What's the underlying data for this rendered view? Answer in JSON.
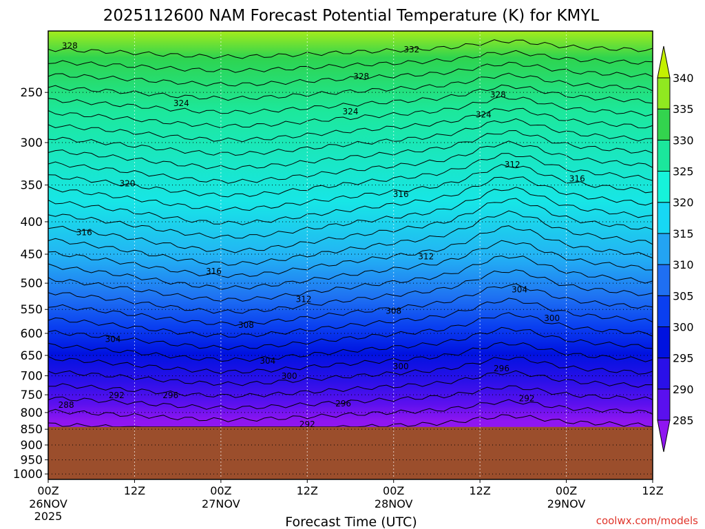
{
  "chart_data": {
    "type": "heatmap",
    "title": "2025112600 NAM Forecast Potential Temperature (K) for KMYL",
    "xlabel": "Forecast Time (UTC)",
    "ylabel": "",
    "credit": "coolwx.com/models",
    "x_ticks": [
      {
        "hour": 0,
        "label": "00Z",
        "sub": "26NOV",
        "sub2": "2025"
      },
      {
        "hour": 12,
        "label": "12Z",
        "sub": "",
        "sub2": ""
      },
      {
        "hour": 24,
        "label": "00Z",
        "sub": "27NOV",
        "sub2": ""
      },
      {
        "hour": 36,
        "label": "12Z",
        "sub": "",
        "sub2": ""
      },
      {
        "hour": 48,
        "label": "00Z",
        "sub": "28NOV",
        "sub2": ""
      },
      {
        "hour": 60,
        "label": "12Z",
        "sub": "",
        "sub2": ""
      },
      {
        "hour": 72,
        "label": "00Z",
        "sub": "29NOV",
        "sub2": ""
      },
      {
        "hour": 84,
        "label": "12Z",
        "sub": "",
        "sub2": ""
      }
    ],
    "x_range_hours": [
      0,
      84
    ],
    "y_axis": {
      "type": "log-pressure",
      "range_hpa": [
        1020,
        200
      ],
      "ticks": [
        250,
        300,
        350,
        400,
        450,
        500,
        550,
        600,
        650,
        700,
        750,
        800,
        850,
        900,
        950,
        1000
      ]
    },
    "colorbar": {
      "levels": [
        285,
        290,
        295,
        300,
        305,
        310,
        315,
        320,
        325,
        330,
        335,
        340
      ],
      "colors": [
        "#8f16f0",
        "#5a10ee",
        "#2a10e8",
        "#0012e0",
        "#0a3ff0",
        "#1f6ff2",
        "#23a4f3",
        "#17d8f4",
        "#16f3da",
        "#1be79c",
        "#33d44e",
        "#90e820",
        "#c4f000"
      ],
      "extend": "both"
    },
    "ground_color": "#9b4e2c",
    "ground_top_hpa": 843,
    "contour_interval_k": 2,
    "grid": true,
    "contour_labels": [
      {
        "label": "328",
        "hour": 3,
        "hpa": 211
      },
      {
        "label": "332",
        "hour": 50.5,
        "hpa": 214
      },
      {
        "label": "328",
        "hour": 43.5,
        "hpa": 236
      },
      {
        "label": "328",
        "hour": 62.5,
        "hpa": 252
      },
      {
        "label": "324",
        "hour": 18.5,
        "hpa": 260
      },
      {
        "label": "324",
        "hour": 42,
        "hpa": 268
      },
      {
        "label": "324",
        "hour": 60.5,
        "hpa": 271
      },
      {
        "label": "312",
        "hour": 64.5,
        "hpa": 325
      },
      {
        "label": "316",
        "hour": 73.5,
        "hpa": 342
      },
      {
        "label": "320",
        "hour": 11,
        "hpa": 348
      },
      {
        "label": "316",
        "hour": 49,
        "hpa": 362
      },
      {
        "label": "316",
        "hour": 5,
        "hpa": 416
      },
      {
        "label": "312",
        "hour": 52.5,
        "hpa": 454
      },
      {
        "label": "316",
        "hour": 23,
        "hpa": 479
      },
      {
        "label": "304",
        "hour": 65.5,
        "hpa": 512
      },
      {
        "label": "312",
        "hour": 35.5,
        "hpa": 530
      },
      {
        "label": "308",
        "hour": 48,
        "hpa": 553
      },
      {
        "label": "308",
        "hour": 27.5,
        "hpa": 582
      },
      {
        "label": "300",
        "hour": 70,
        "hpa": 568
      },
      {
        "label": "304",
        "hour": 9,
        "hpa": 613
      },
      {
        "label": "304",
        "hour": 30.5,
        "hpa": 663
      },
      {
        "label": "300",
        "hour": 49,
        "hpa": 677
      },
      {
        "label": "296",
        "hour": 63,
        "hpa": 682
      },
      {
        "label": "300",
        "hour": 33.5,
        "hpa": 701
      },
      {
        "label": "292",
        "hour": 9.5,
        "hpa": 752
      },
      {
        "label": "296",
        "hour": 17,
        "hpa": 752
      },
      {
        "label": "292",
        "hour": 66.5,
        "hpa": 760
      },
      {
        "label": "288",
        "hour": 2.5,
        "hpa": 778
      },
      {
        "label": "296",
        "hour": 41,
        "hpa": 775
      },
      {
        "label": "292",
        "hour": 36,
        "hpa": 835
      }
    ]
  }
}
